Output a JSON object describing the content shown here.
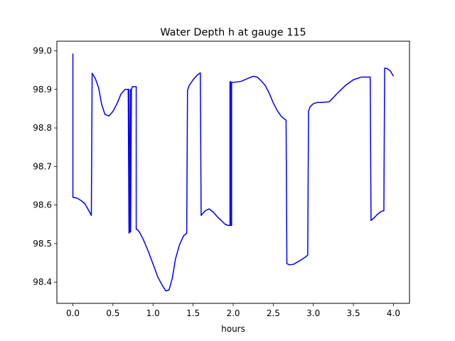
{
  "chart_data": {
    "type": "line",
    "title": "Water Depth h at gauge 115",
    "xlabel": "hours",
    "ylabel": "",
    "xlim": [
      -0.2,
      4.2
    ],
    "ylim": [
      98.345,
      99.025
    ],
    "xticks": [
      0.0,
      0.5,
      1.0,
      1.5,
      2.0,
      2.5,
      3.0,
      3.5,
      4.0
    ],
    "xtick_labels": [
      "0.0",
      "0.5",
      "1.0",
      "1.5",
      "2.0",
      "2.5",
      "3.0",
      "3.5",
      "4.0"
    ],
    "yticks": [
      98.4,
      98.5,
      98.6,
      98.7,
      98.8,
      98.9,
      99.0
    ],
    "ytick_labels": [
      "98.4",
      "98.5",
      "98.6",
      "98.7",
      "98.8",
      "98.9",
      "99.0"
    ],
    "grid": false,
    "color": "#0000ff",
    "series": [
      {
        "x": [
          0.0,
          0.0,
          0.05,
          0.1,
          0.15,
          0.2,
          0.23,
          0.24,
          0.24,
          0.28,
          0.32,
          0.36,
          0.4,
          0.45,
          0.5,
          0.55,
          0.6,
          0.65,
          0.69,
          0.7,
          0.7,
          0.71,
          0.72,
          0.72,
          0.73,
          0.74,
          0.74,
          0.76,
          0.78,
          0.79,
          0.79,
          0.8,
          0.83,
          0.88,
          0.94,
          1.0,
          1.06,
          1.12,
          1.16,
          1.2,
          1.24,
          1.28,
          1.33,
          1.38,
          1.42,
          1.43,
          1.45,
          1.5,
          1.55,
          1.59,
          1.6,
          1.65,
          1.7,
          1.75,
          1.8,
          1.85,
          1.9,
          1.94,
          1.96,
          1.96,
          1.97,
          1.97,
          1.98,
          1.98,
          1.99,
          2.0,
          2.1,
          2.2,
          2.25,
          2.3,
          2.35,
          2.4,
          2.45,
          2.5,
          2.55,
          2.6,
          2.66,
          2.67,
          2.7,
          2.75,
          2.8,
          2.85,
          2.9,
          2.93,
          2.94,
          2.96,
          3.0,
          3.05,
          3.1,
          3.2,
          3.3,
          3.4,
          3.5,
          3.6,
          3.65,
          3.71,
          3.72,
          3.75,
          3.8,
          3.85,
          3.88,
          3.89,
          3.92,
          3.96,
          4.0
        ],
        "y": [
          98.993,
          98.62,
          98.618,
          98.612,
          98.603,
          98.585,
          98.573,
          98.942,
          98.942,
          98.928,
          98.905,
          98.86,
          98.835,
          98.831,
          98.843,
          98.863,
          98.888,
          98.9,
          98.9,
          98.527,
          98.9,
          98.53,
          98.9,
          98.53,
          98.9,
          98.905,
          98.907,
          98.907,
          98.907,
          98.907,
          98.537,
          98.537,
          98.53,
          98.51,
          98.48,
          98.447,
          98.413,
          98.39,
          98.377,
          98.38,
          98.41,
          98.46,
          98.497,
          98.52,
          98.527,
          98.897,
          98.91,
          98.925,
          98.937,
          98.943,
          98.573,
          98.585,
          98.59,
          98.582,
          98.57,
          98.56,
          98.55,
          98.547,
          98.547,
          98.92,
          98.92,
          98.547,
          98.547,
          98.918,
          98.918,
          98.918,
          98.921,
          98.93,
          98.934,
          98.932,
          98.922,
          98.91,
          98.89,
          98.865,
          98.845,
          98.83,
          98.82,
          98.448,
          98.445,
          98.446,
          98.452,
          98.458,
          98.465,
          98.47,
          98.843,
          98.855,
          98.863,
          98.866,
          98.866,
          98.868,
          98.89,
          98.91,
          98.925,
          98.932,
          98.932,
          98.932,
          98.56,
          98.565,
          98.576,
          98.584,
          98.585,
          98.955,
          98.954,
          98.948,
          98.934
        ]
      }
    ]
  }
}
